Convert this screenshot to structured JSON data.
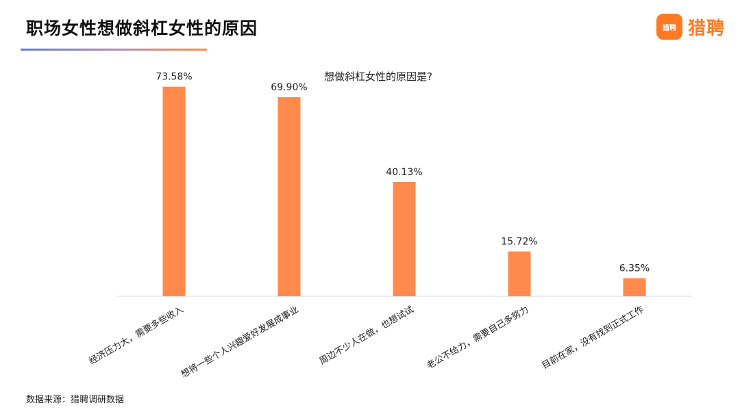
{
  "header": {
    "title": "职场女性想做斜杠女性的原因",
    "brand_icon_text": "猎聘",
    "brand_name": "猎聘"
  },
  "footer": {
    "source": "数据来源：猎聘调研数据"
  },
  "colors": {
    "bar": "#FF8A4C",
    "brand": "#FF7A22",
    "axis": "#D9D9D9"
  },
  "chart_data": {
    "type": "bar",
    "title": "想做斜杠女性的原因是?",
    "xlabel": "",
    "ylabel": "",
    "categories": [
      "经济压力大，需要多些收入",
      "想将一些个人兴趣爱好发展成事业",
      "周边不少人在做，也想试试",
      "老公不给力，需要自己多努力",
      "目前在家，没有找到正式工作"
    ],
    "values": [
      73.58,
      69.9,
      40.13,
      15.72,
      6.35
    ],
    "data_labels": [
      "73.58%",
      "69.90%",
      "40.13%",
      "15.72%",
      "6.35%"
    ],
    "ylim": [
      0,
      80
    ],
    "grid": false,
    "legend": "none"
  }
}
